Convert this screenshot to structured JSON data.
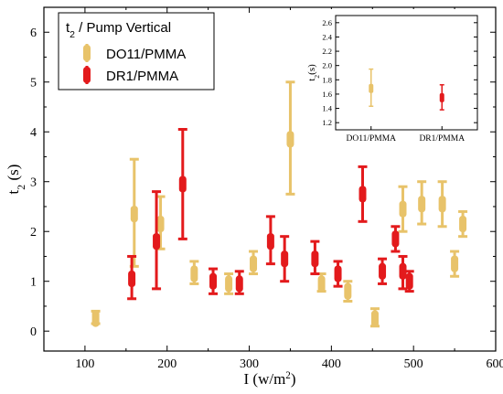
{
  "chart_data": {
    "type": "scatter",
    "xlabel": "I (w/m²)",
    "ylabel": "t₂ (s)",
    "xlim": [
      50,
      600
    ],
    "ylim": [
      -0.4,
      6.5
    ],
    "xticks": [
      100,
      200,
      300,
      400,
      500,
      600
    ],
    "yticks": [
      0,
      1,
      2,
      3,
      4,
      5,
      6
    ],
    "grid": false,
    "legend": {
      "title": "t₂ / Pump Vertical",
      "placement": "top-left",
      "entries": [
        "DO11/PMMA",
        "DR1/PMMA"
      ]
    },
    "series": [
      {
        "name": "DO11/PMMA",
        "color": "#e8c36a",
        "points": [
          {
            "x": 113,
            "y": 0.25,
            "err_low": 0.15,
            "err_high": 0.4
          },
          {
            "x": 160,
            "y": 2.35,
            "err_low": 1.3,
            "err_high": 3.45
          },
          {
            "x": 192,
            "y": 2.15,
            "err_low": 1.65,
            "err_high": 2.7
          },
          {
            "x": 233,
            "y": 1.15,
            "err_low": 0.95,
            "err_high": 1.4
          },
          {
            "x": 275,
            "y": 0.95,
            "err_low": 0.75,
            "err_high": 1.15
          },
          {
            "x": 305,
            "y": 1.35,
            "err_low": 1.15,
            "err_high": 1.6
          },
          {
            "x": 350,
            "y": 3.85,
            "err_low": 2.75,
            "err_high": 5.0
          },
          {
            "x": 388,
            "y": 0.95,
            "err_low": 0.8,
            "err_high": 1.15
          },
          {
            "x": 420,
            "y": 0.8,
            "err_low": 0.6,
            "err_high": 1.0
          },
          {
            "x": 453,
            "y": 0.25,
            "err_low": 0.1,
            "err_high": 0.45
          },
          {
            "x": 487,
            "y": 2.45,
            "err_low": 2.0,
            "err_high": 2.9
          },
          {
            "x": 510,
            "y": 2.55,
            "err_low": 2.15,
            "err_high": 3.0
          },
          {
            "x": 535,
            "y": 2.55,
            "err_low": 2.1,
            "err_high": 3.0
          },
          {
            "x": 550,
            "y": 1.35,
            "err_low": 1.1,
            "err_high": 1.6
          },
          {
            "x": 560,
            "y": 2.15,
            "err_low": 1.9,
            "err_high": 2.4
          }
        ]
      },
      {
        "name": "DR1/PMMA",
        "color": "#e31a1c",
        "points": [
          {
            "x": 157,
            "y": 1.05,
            "err_low": 0.65,
            "err_high": 1.5
          },
          {
            "x": 187,
            "y": 1.8,
            "err_low": 0.85,
            "err_high": 2.8
          },
          {
            "x": 219,
            "y": 2.95,
            "err_low": 1.85,
            "err_high": 4.05
          },
          {
            "x": 256,
            "y": 1.0,
            "err_low": 0.75,
            "err_high": 1.25
          },
          {
            "x": 288,
            "y": 0.95,
            "err_low": 0.75,
            "err_high": 1.2
          },
          {
            "x": 326,
            "y": 1.8,
            "err_low": 1.35,
            "err_high": 2.3
          },
          {
            "x": 343,
            "y": 1.45,
            "err_low": 1.0,
            "err_high": 1.9
          },
          {
            "x": 380,
            "y": 1.45,
            "err_low": 1.15,
            "err_high": 1.8
          },
          {
            "x": 408,
            "y": 1.15,
            "err_low": 0.9,
            "err_high": 1.4
          },
          {
            "x": 438,
            "y": 2.75,
            "err_low": 2.2,
            "err_high": 3.3
          },
          {
            "x": 462,
            "y": 1.2,
            "err_low": 0.95,
            "err_high": 1.45
          },
          {
            "x": 478,
            "y": 1.85,
            "err_low": 1.6,
            "err_high": 2.1
          },
          {
            "x": 487,
            "y": 1.2,
            "err_low": 0.85,
            "err_high": 1.5
          },
          {
            "x": 495,
            "y": 1.0,
            "err_low": 0.8,
            "err_high": 1.2
          }
        ]
      }
    ],
    "inset": {
      "type": "scatter",
      "ylabel": "t₂(s)",
      "ylim": [
        1.1,
        2.7
      ],
      "yticks": [
        1.2,
        1.4,
        1.6,
        1.8,
        2.0,
        2.2,
        2.4,
        2.6
      ],
      "categories": [
        "DO11/PMMA",
        "DR1/PMMA"
      ],
      "series": [
        {
          "name": "DO11/PMMA",
          "color": "#e8c36a",
          "x": 0,
          "y": 1.68,
          "err_low": 1.43,
          "err_high": 1.95
        },
        {
          "name": "DR1/PMMA",
          "color": "#e31a1c",
          "x": 1,
          "y": 1.55,
          "err_low": 1.38,
          "err_high": 1.73
        }
      ]
    }
  }
}
